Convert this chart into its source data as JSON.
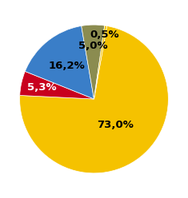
{
  "slices": [
    73.0,
    5.3,
    16.2,
    5.0,
    0.5
  ],
  "labels": [
    "73,0%",
    "5,3%",
    "16,2%",
    "5,0%",
    "0,5%"
  ],
  "colors": [
    "#F5C200",
    "#C8001E",
    "#3A7EC8",
    "#8B8C50",
    "#F5C200"
  ],
  "startangle": 80,
  "label_fontsize": 9.5,
  "label_color_white": [
    "5,3%"
  ],
  "label_radii": [
    0.45,
    0.72,
    0.58,
    0.72,
    0.88
  ],
  "figsize": [
    2.35,
    2.48
  ],
  "dpi": 100
}
